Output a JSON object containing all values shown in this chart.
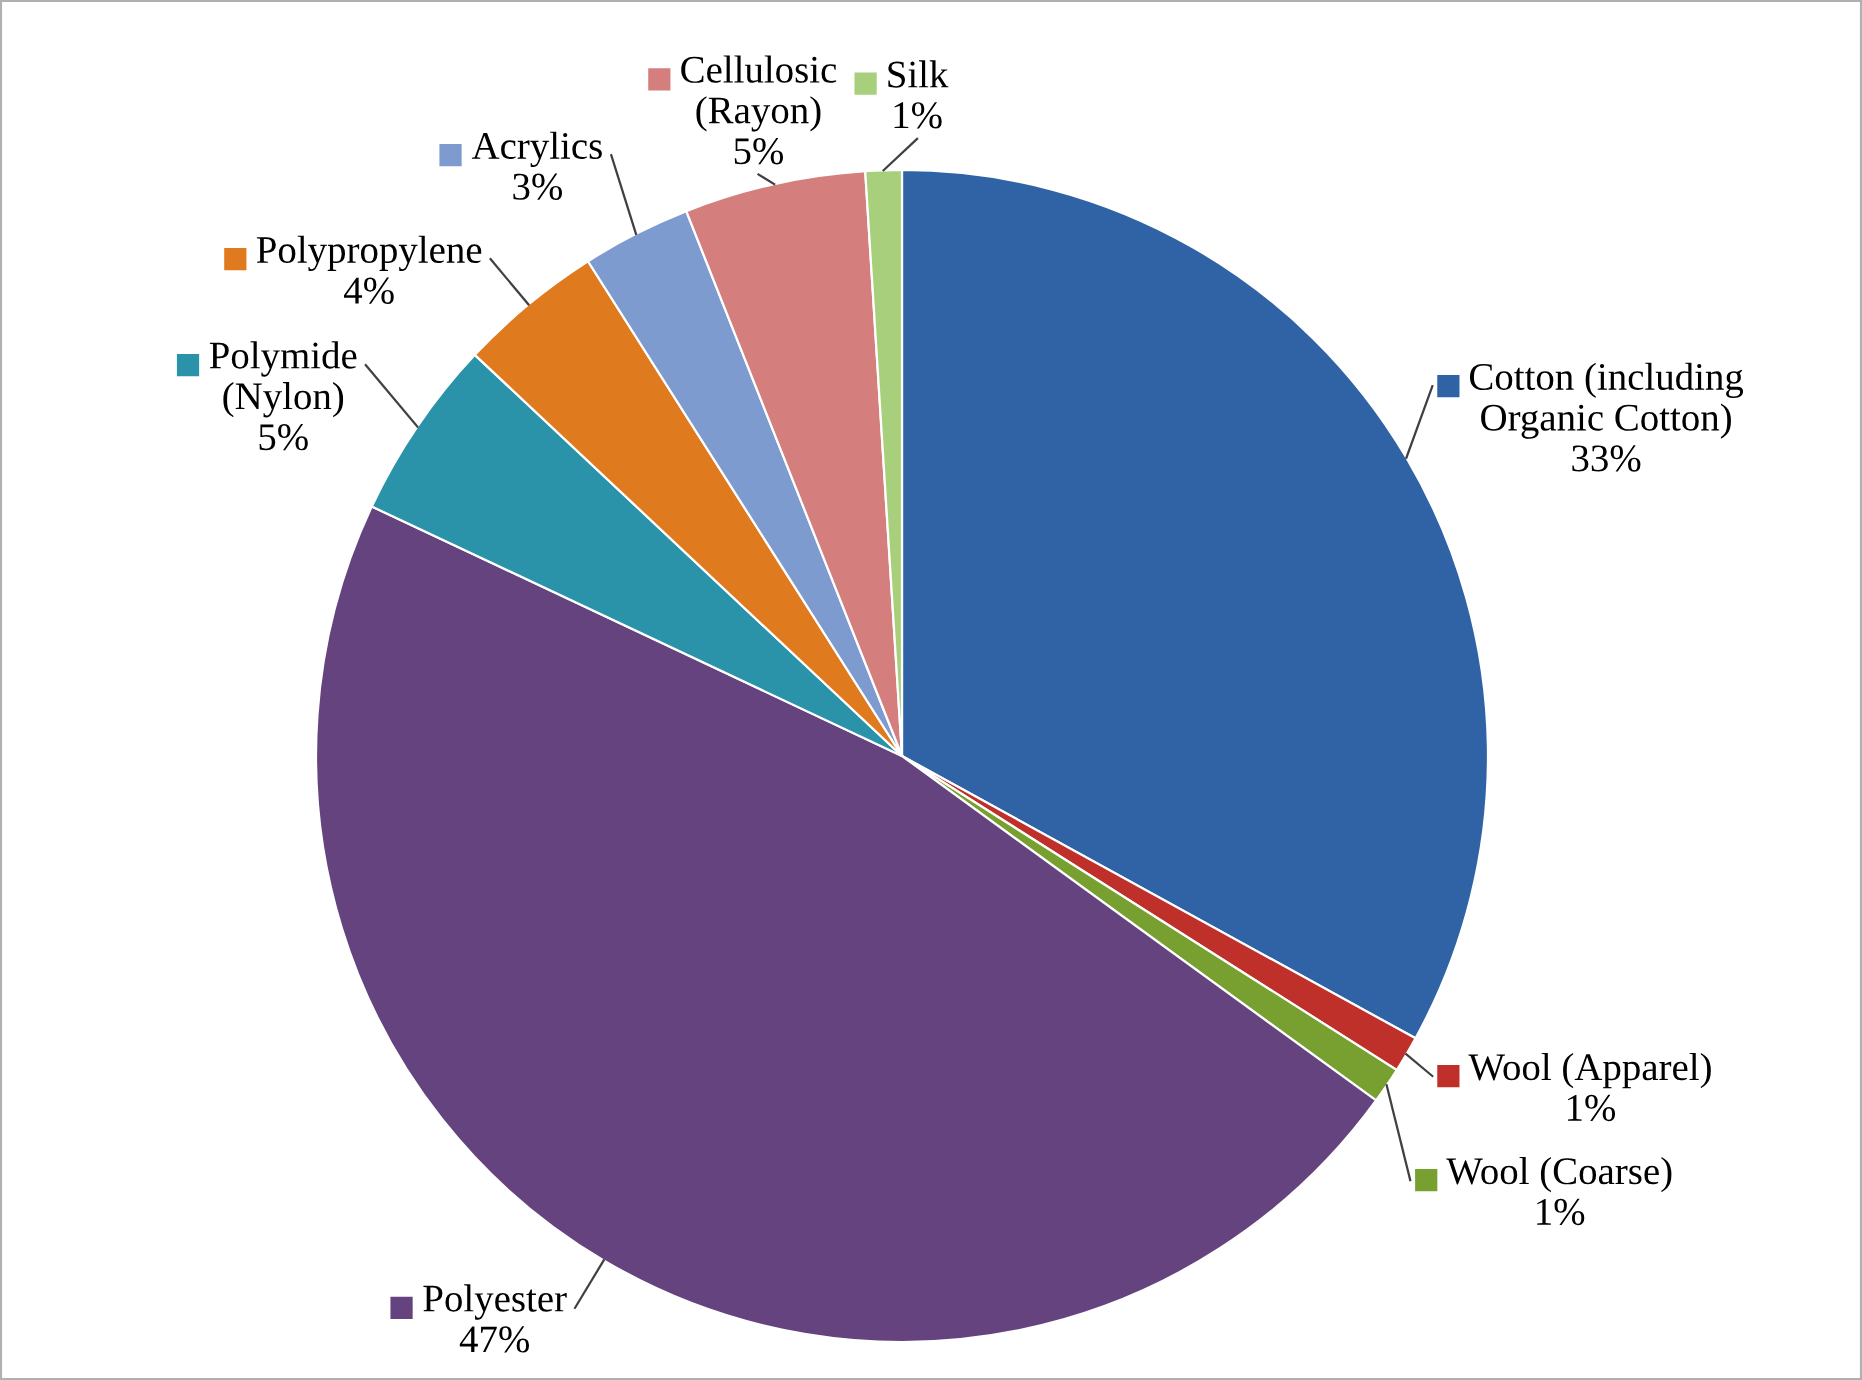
{
  "chart_data": {
    "type": "pie",
    "legend": "right",
    "categories": [
      "Cotton (including Organic Cotton)",
      "Wool (Apparel)",
      "Wool (Coarse)",
      "Polyester",
      "Polymide (Nylon)",
      "Polypropylene",
      "Acrylics",
      "Cellulosic (Rayon)",
      "Silk"
    ],
    "values": [
      33,
      1,
      1,
      47,
      5,
      4,
      3,
      5,
      1
    ],
    "colors": [
      "#2f63a6",
      "#c0302a",
      "#77a030",
      "#65437f",
      "#2a93aa",
      "#e07a1f",
      "#7e9bcf",
      "#d47f7e",
      "#a8cf7c"
    ],
    "value_labels": [
      "33%",
      "1%",
      "1%",
      "47%",
      "5%",
      "4%",
      "3%",
      "5%",
      "1%"
    ]
  }
}
